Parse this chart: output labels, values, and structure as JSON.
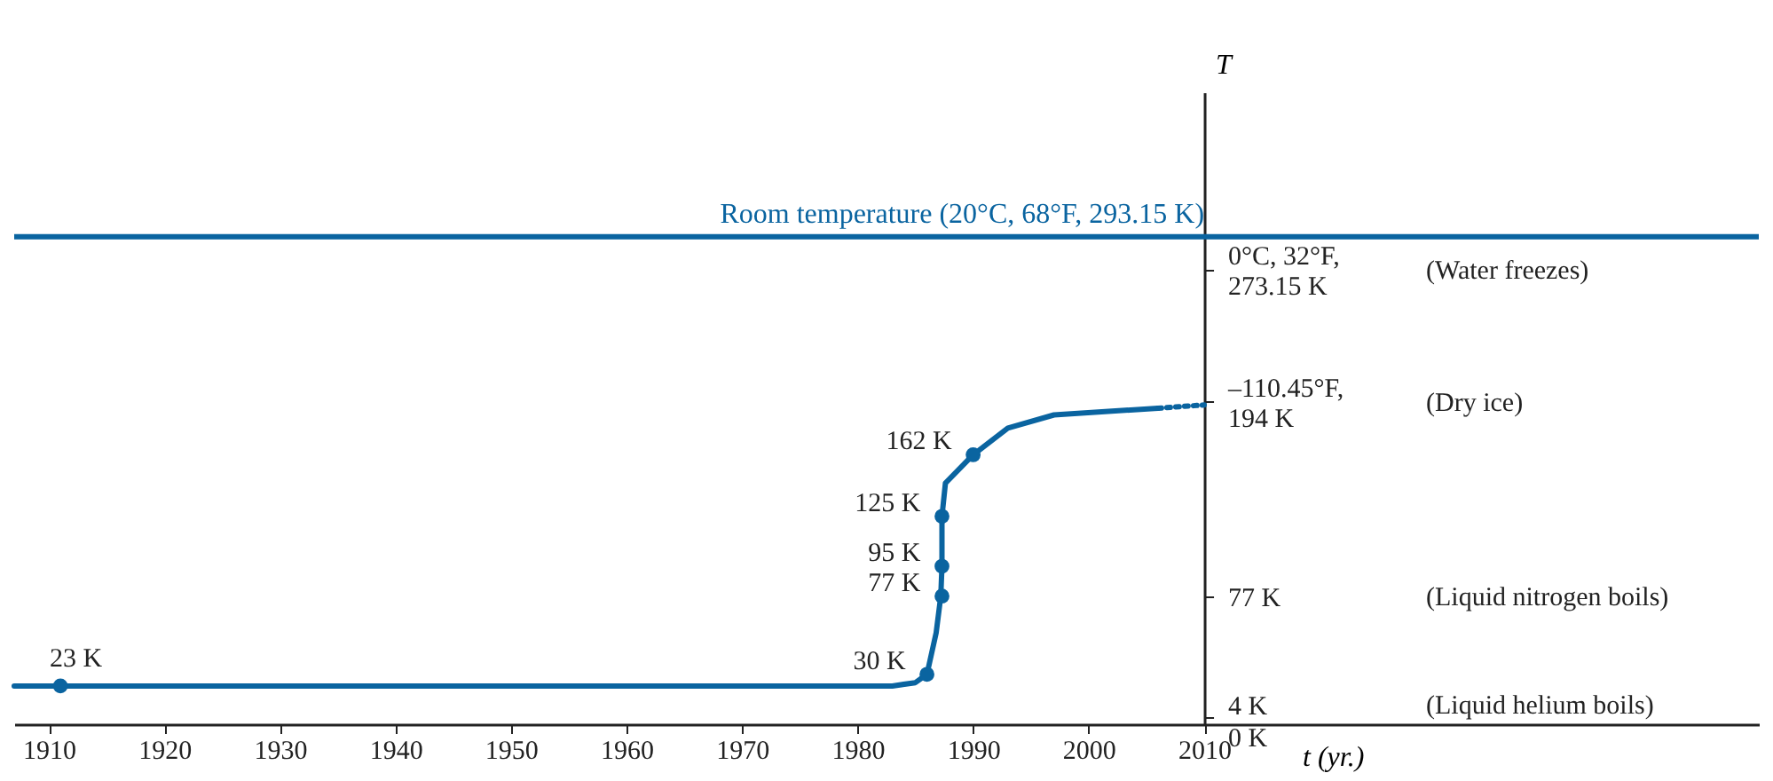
{
  "chart_data": {
    "type": "line",
    "xlabel": "t (yr.)",
    "ylabel": "T",
    "xlim": [
      1907,
      2058
    ],
    "xticks": [
      1910,
      1920,
      1930,
      1940,
      1950,
      1960,
      1970,
      1980,
      1990,
      2000,
      2010
    ],
    "ylim": [
      0,
      380
    ],
    "yticks": [
      {
        "value": 0,
        "label": "0 K"
      },
      {
        "value": 4,
        "label": "4 K"
      },
      {
        "value": 77,
        "label": "77 K"
      },
      {
        "value": 194,
        "label": "–110.45°F,\n194 K"
      },
      {
        "value": 273.15,
        "label": "0°C, 32°F,\n273.15 K"
      }
    ],
    "grid": false,
    "series": [
      {
        "color": "#0a64a0",
        "line_style": "solid",
        "x": [
          1907,
          1983,
          1985,
          1986,
          1986.8,
          1987.2,
          1987.3,
          1987.3,
          1987.6,
          1990,
          1993,
          1997,
          2006
        ],
        "values": [
          23,
          23,
          25,
          30,
          55,
          77,
          95,
          125,
          145,
          162,
          178,
          186,
          190
        ]
      },
      {
        "color": "#0a64a0",
        "line_style": "dotted",
        "x": [
          2006,
          2010
        ],
        "values": [
          190,
          192
        ]
      },
      {
        "type": "scatter",
        "color": "#0a64a0",
        "marker": "circle",
        "x": [
          1911,
          1986,
          1987.3,
          1987.3,
          1987.3,
          1990
        ],
        "values": [
          23,
          30,
          77,
          95,
          125,
          162
        ],
        "value_labels": [
          "23 K",
          "30 K",
          "77 K",
          "95 K",
          "125 K",
          "162 K"
        ]
      }
    ],
    "ref_lines": [
      {
        "axis": "y",
        "value": 293.15,
        "label": "Room temperature (20°C, 68°F, 293.15 K)",
        "color": "#0a64a0"
      }
    ],
    "annotations": [
      "(Water freezes)",
      "(Dry ice)",
      "(Liquid nitrogen boils)",
      "(Liquid helium boils)"
    ]
  }
}
